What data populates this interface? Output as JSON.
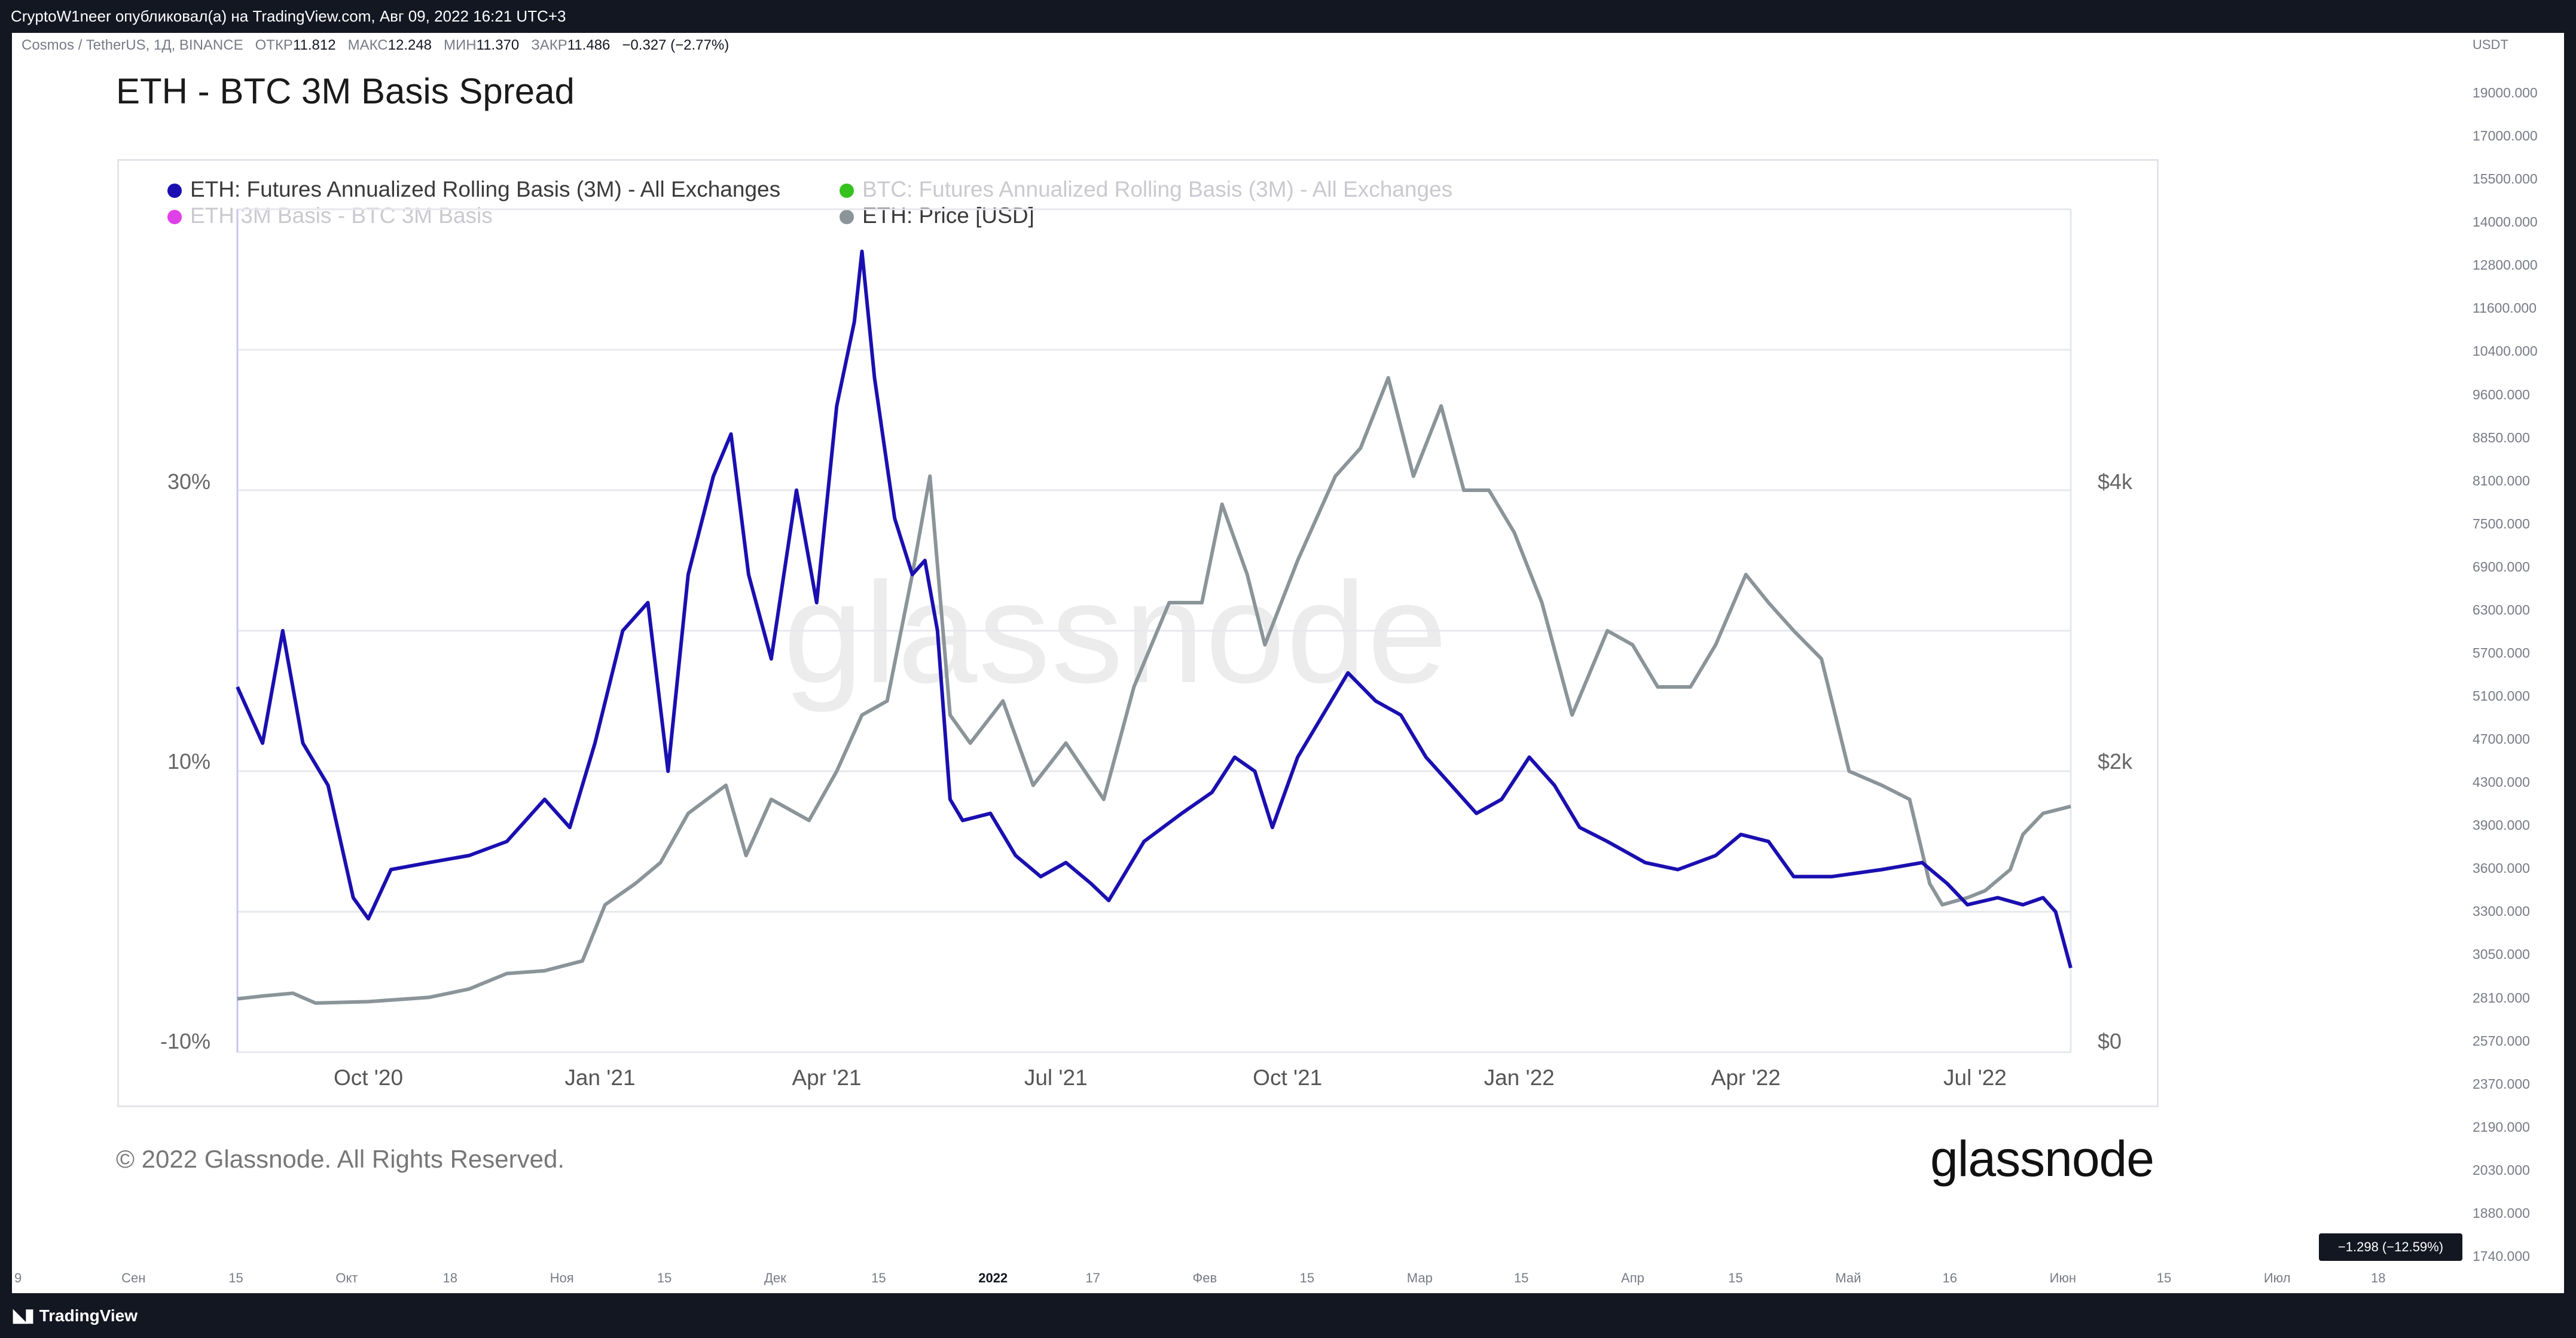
{
  "tradingview": {
    "header": "CryptoW1neer опубликовал(а) на TradingView.com, Авг 09, 2022 16:21 UTC+3",
    "symbol_line": {
      "symbol": "Cosmos / TetherUS, 1Д, BINANCE",
      "open_label": "ОТКР",
      "open": "11.812",
      "high_label": "МАКС",
      "high": "12.248",
      "low_label": "МИН",
      "low": "11.370",
      "close_label": "ЗАКР",
      "close": "11.486",
      "change": "−0.327 (−2.77%)"
    },
    "price_axis": {
      "currency": "USDT",
      "labels": [
        "19000.000",
        "17000.000",
        "15500.000",
        "14000.000",
        "12800.000",
        "11600.000",
        "10400.000",
        "9600.000",
        "8850.000",
        "8100.000",
        "7500.000",
        "6900.000",
        "6300.000",
        "5700.000",
        "5100.000",
        "4700.000",
        "4300.000",
        "3900.000",
        "3600.000",
        "3300.000",
        "3050.000",
        "2810.000",
        "2570.000",
        "2370.000",
        "2190.000",
        "2030.000",
        "1880.000",
        "1740.000"
      ]
    },
    "price_tag": "−1.298 (−12.59%)",
    "time_axis": [
      "9",
      "Сен",
      "15",
      "Окт",
      "18",
      "Ноя",
      "15",
      "Дек",
      "15",
      "2022",
      "17",
      "Фев",
      "15",
      "Мар",
      "15",
      "Апр",
      "15",
      "Май",
      "16",
      "Июн",
      "15",
      "Июл",
      "18"
    ],
    "brand": "TradingView"
  },
  "glassnode": {
    "title": "ETH - BTC 3M Basis Spread",
    "legend": [
      {
        "label": "ETH: Futures Annualized Rolling Basis (3M) - All Exchanges",
        "color": "#1a0fb0",
        "faded": false
      },
      {
        "label": "BTC: Futures Annualized Rolling Basis (3M) - All Exchanges",
        "color": "#35c21f",
        "faded": true
      },
      {
        "label": "ETH 3M Basis - BTC 3M Basis",
        "color": "#e040e8",
        "faded": true
      },
      {
        "label": "ETH: Price [USD]",
        "color": "#8a9499",
        "faded": false
      }
    ],
    "watermark": "glassnode",
    "copyright": "© 2022 Glassnode. All Rights Reserved.",
    "logo": "glassnode"
  },
  "chart_data": {
    "type": "line",
    "title": "ETH - BTC 3M Basis Spread",
    "x_tick_labels": [
      "Oct '20",
      "Jan '21",
      "Apr '21",
      "Jul '21",
      "Oct '21",
      "Jan '22",
      "Apr '22",
      "Jul '22"
    ],
    "y_left_tick_labels": [
      "30%",
      "10%",
      "-10%"
    ],
    "y_right_tick_labels": [
      "$4k",
      "$2k",
      "$0"
    ],
    "y_left_range": [
      -10,
      50
    ],
    "y_right_range": [
      0,
      6000
    ],
    "x_range": [
      "2020-08-10",
      "2022-08-08"
    ],
    "grid": true,
    "legend_position": "top-left",
    "series": [
      {
        "name": "ETH: Futures Annualized Rolling Basis (3M) - All Exchanges",
        "axis": "left",
        "unit": "%",
        "color": "#1a0fb0",
        "points": [
          [
            "2020-08-10",
            16
          ],
          [
            "2020-08-20",
            12
          ],
          [
            "2020-08-28",
            20
          ],
          [
            "2020-09-05",
            12
          ],
          [
            "2020-09-15",
            9
          ],
          [
            "2020-09-25",
            1
          ],
          [
            "2020-10-01",
            -0.5
          ],
          [
            "2020-10-10",
            3
          ],
          [
            "2020-10-25",
            3.5
          ],
          [
            "2020-11-10",
            4
          ],
          [
            "2020-11-25",
            5
          ],
          [
            "2020-12-10",
            8
          ],
          [
            "2020-12-20",
            6
          ],
          [
            "2020-12-30",
            12
          ],
          [
            "2021-01-10",
            20
          ],
          [
            "2021-01-20",
            22
          ],
          [
            "2021-01-28",
            10
          ],
          [
            "2021-02-05",
            24
          ],
          [
            "2021-02-15",
            31
          ],
          [
            "2021-02-22",
            34
          ],
          [
            "2021-03-01",
            24
          ],
          [
            "2021-03-10",
            18
          ],
          [
            "2021-03-20",
            30
          ],
          [
            "2021-03-28",
            22
          ],
          [
            "2021-04-05",
            36
          ],
          [
            "2021-04-12",
            42
          ],
          [
            "2021-04-15",
            47
          ],
          [
            "2021-04-20",
            38
          ],
          [
            "2021-04-28",
            28
          ],
          [
            "2021-05-05",
            24
          ],
          [
            "2021-05-10",
            25
          ],
          [
            "2021-05-15",
            20
          ],
          [
            "2021-05-20",
            8
          ],
          [
            "2021-05-25",
            6.5
          ],
          [
            "2021-06-05",
            7
          ],
          [
            "2021-06-15",
            4
          ],
          [
            "2021-06-25",
            2.5
          ],
          [
            "2021-07-05",
            3.5
          ],
          [
            "2021-07-15",
            2
          ],
          [
            "2021-07-22",
            0.8
          ],
          [
            "2021-08-05",
            5
          ],
          [
            "2021-08-20",
            7
          ],
          [
            "2021-09-01",
            8.5
          ],
          [
            "2021-09-10",
            11
          ],
          [
            "2021-09-18",
            10
          ],
          [
            "2021-09-25",
            6
          ],
          [
            "2021-10-05",
            11
          ],
          [
            "2021-10-15",
            14
          ],
          [
            "2021-10-25",
            17
          ],
          [
            "2021-11-05",
            15
          ],
          [
            "2021-11-15",
            14
          ],
          [
            "2021-11-25",
            11
          ],
          [
            "2021-12-05",
            9
          ],
          [
            "2021-12-15",
            7
          ],
          [
            "2021-12-25",
            8
          ],
          [
            "2022-01-05",
            11
          ],
          [
            "2022-01-15",
            9
          ],
          [
            "2022-01-25",
            6
          ],
          [
            "2022-02-05",
            5
          ],
          [
            "2022-02-20",
            3.5
          ],
          [
            "2022-03-05",
            3
          ],
          [
            "2022-03-20",
            4
          ],
          [
            "2022-03-30",
            5.5
          ],
          [
            "2022-04-10",
            5
          ],
          [
            "2022-04-20",
            2.5
          ],
          [
            "2022-05-05",
            2.5
          ],
          [
            "2022-05-25",
            3
          ],
          [
            "2022-06-10",
            3.5
          ],
          [
            "2022-06-20",
            2
          ],
          [
            "2022-06-28",
            0.5
          ],
          [
            "2022-07-10",
            1
          ],
          [
            "2022-07-20",
            0.5
          ],
          [
            "2022-07-28",
            1
          ],
          [
            "2022-08-02",
            0
          ],
          [
            "2022-08-08",
            -4
          ]
        ]
      },
      {
        "name": "ETH: Price [USD]",
        "axis": "right",
        "unit": "USD",
        "color": "#8a9499",
        "points": [
          [
            "2020-08-10",
            380
          ],
          [
            "2020-08-20",
            400
          ],
          [
            "2020-09-01",
            420
          ],
          [
            "2020-09-10",
            350
          ],
          [
            "2020-10-01",
            360
          ],
          [
            "2020-10-25",
            390
          ],
          [
            "2020-11-10",
            450
          ],
          [
            "2020-11-25",
            560
          ],
          [
            "2020-12-10",
            580
          ],
          [
            "2020-12-25",
            650
          ],
          [
            "2021-01-03",
            1050
          ],
          [
            "2021-01-15",
            1200
          ],
          [
            "2021-01-25",
            1350
          ],
          [
            "2021-02-05",
            1700
          ],
          [
            "2021-02-20",
            1900
          ],
          [
            "2021-02-28",
            1400
          ],
          [
            "2021-03-10",
            1800
          ],
          [
            "2021-03-25",
            1650
          ],
          [
            "2021-04-05",
            2000
          ],
          [
            "2021-04-15",
            2400
          ],
          [
            "2021-04-25",
            2500
          ],
          [
            "2021-05-05",
            3400
          ],
          [
            "2021-05-12",
            4100
          ],
          [
            "2021-05-20",
            2400
          ],
          [
            "2021-05-28",
            2200
          ],
          [
            "2021-06-10",
            2500
          ],
          [
            "2021-06-22",
            1900
          ],
          [
            "2021-07-05",
            2200
          ],
          [
            "2021-07-20",
            1800
          ],
          [
            "2021-08-01",
            2600
          ],
          [
            "2021-08-15",
            3200
          ],
          [
            "2021-08-28",
            3200
          ],
          [
            "2021-09-05",
            3900
          ],
          [
            "2021-09-15",
            3400
          ],
          [
            "2021-09-22",
            2900
          ],
          [
            "2021-10-05",
            3500
          ],
          [
            "2021-10-20",
            4100
          ],
          [
            "2021-10-30",
            4300
          ],
          [
            "2021-11-10",
            4800
          ],
          [
            "2021-11-20",
            4100
          ],
          [
            "2021-12-01",
            4600
          ],
          [
            "2021-12-10",
            4000
          ],
          [
            "2021-12-20",
            4000
          ],
          [
            "2021-12-30",
            3700
          ],
          [
            "2022-01-10",
            3200
          ],
          [
            "2022-01-22",
            2400
          ],
          [
            "2022-02-05",
            3000
          ],
          [
            "2022-02-15",
            2900
          ],
          [
            "2022-02-25",
            2600
          ],
          [
            "2022-03-10",
            2600
          ],
          [
            "2022-03-20",
            2900
          ],
          [
            "2022-04-01",
            3400
          ],
          [
            "2022-04-10",
            3200
          ],
          [
            "2022-04-20",
            3000
          ],
          [
            "2022-05-01",
            2800
          ],
          [
            "2022-05-12",
            2000
          ],
          [
            "2022-05-25",
            1900
          ],
          [
            "2022-06-05",
            1800
          ],
          [
            "2022-06-13",
            1200
          ],
          [
            "2022-06-18",
            1050
          ],
          [
            "2022-06-28",
            1100
          ],
          [
            "2022-07-05",
            1150
          ],
          [
            "2022-07-15",
            1300
          ],
          [
            "2022-07-20",
            1550
          ],
          [
            "2022-07-28",
            1700
          ],
          [
            "2022-08-08",
            1750
          ]
        ]
      }
    ]
  }
}
